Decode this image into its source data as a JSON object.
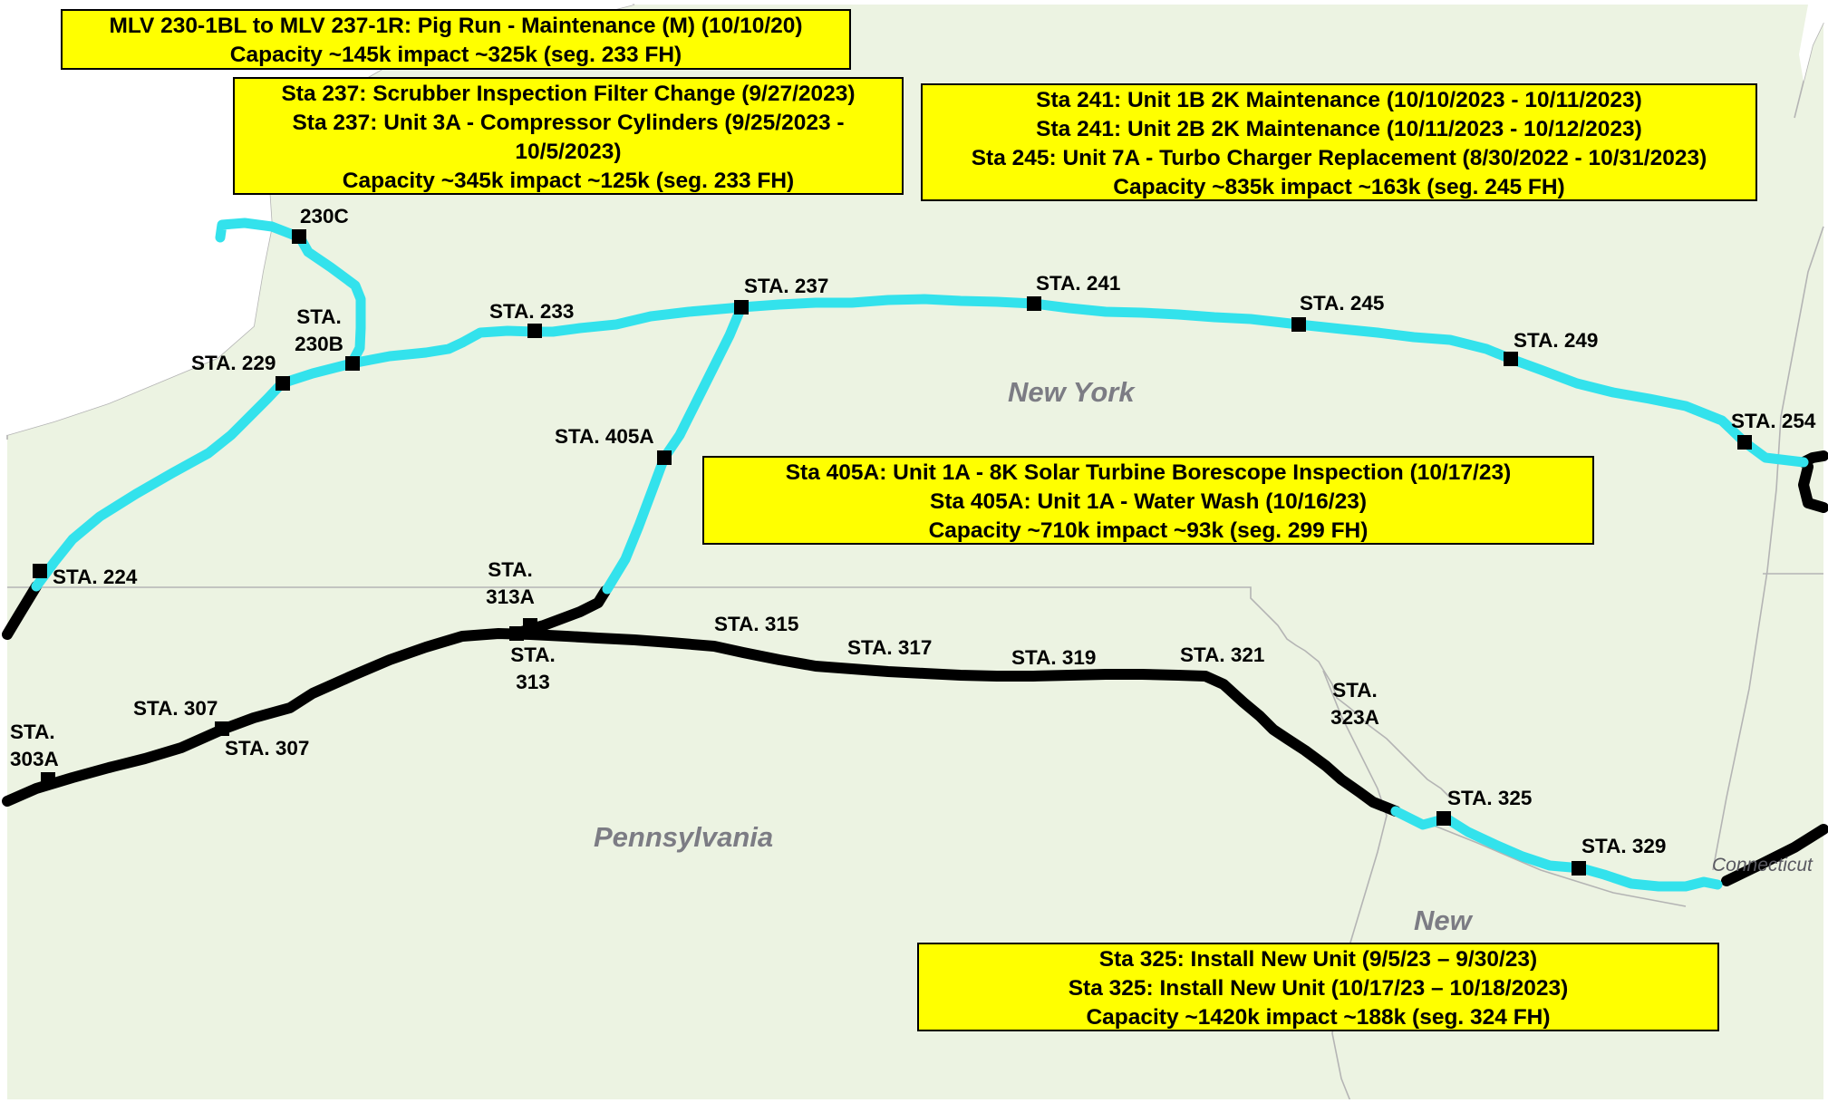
{
  "map": {
    "colors": {
      "land": "#ecf3e2",
      "border": "#b4b4b4",
      "active_segment": "#33e2ec",
      "pipeline": "#000000",
      "station": "#000000",
      "note_fill": "#ffff00",
      "state_label": "#7c7c84"
    },
    "states": [
      "New York",
      "Pennsylvania",
      "New",
      "Connecticut"
    ],
    "stations": [
      {
        "id": "230c",
        "label": "230C"
      },
      {
        "id": "230b",
        "label": "STA. 230B"
      },
      {
        "id": "229",
        "label": "STA. 229"
      },
      {
        "id": "233",
        "label": "STA. 233"
      },
      {
        "id": "237",
        "label": "STA. 237"
      },
      {
        "id": "241",
        "label": "STA. 241"
      },
      {
        "id": "245",
        "label": "STA. 245"
      },
      {
        "id": "249",
        "label": "STA. 249"
      },
      {
        "id": "254",
        "label": "STA. 254"
      },
      {
        "id": "405a",
        "label": "STA. 405A"
      },
      {
        "id": "224",
        "label": "STA. 224"
      },
      {
        "id": "313a",
        "label": "STA. 313A"
      },
      {
        "id": "313",
        "label": "STA. 313"
      },
      {
        "id": "315",
        "label": "STA. 315"
      },
      {
        "id": "317",
        "label": "STA. 317"
      },
      {
        "id": "319",
        "label": "STA. 319"
      },
      {
        "id": "321",
        "label": "STA. 321"
      },
      {
        "id": "323a",
        "label": "STA. 323A"
      },
      {
        "id": "325",
        "label": "STA. 325"
      },
      {
        "id": "329",
        "label": "STA. 329"
      },
      {
        "id": "307-north",
        "label": "STA. 307"
      },
      {
        "id": "307-south",
        "label": "STA. 307"
      },
      {
        "id": "303a",
        "label": "STA. 303A"
      }
    ],
    "notes": [
      {
        "id": "pig-run",
        "lines": [
          "MLV 230-1BL to MLV 237-1R: Pig Run - Maintenance (M) (10/10/20)",
          "Capacity ~145k impact ~325k (seg. 233 FH)"
        ]
      },
      {
        "id": "sta-237",
        "lines": [
          "Sta 237: Scrubber Inspection Filter Change  (9/27/2023)",
          "Sta 237: Unit 3A - Compressor Cylinders  (9/25/2023 - 10/5/2023)",
          "Capacity ~345k impact ~125k (seg. 233 FH)"
        ]
      },
      {
        "id": "sta-241-245",
        "lines": [
          "Sta 241: Unit 1B 2K Maintenance  (10/10/2023 - 10/11/2023)",
          "Sta 241: Unit 2B 2K Maintenance  (10/11/2023 - 10/12/2023)",
          "Sta 245: Unit 7A - Turbo Charger Replacement  (8/30/2022 - 10/31/2023)",
          "Capacity ~835k impact ~163k (seg. 245 FH)"
        ]
      },
      {
        "id": "sta-405a",
        "lines": [
          "Sta 405A: Unit 1A - 8K Solar Turbine Borescope Inspection  (10/17/23)",
          "Sta 405A: Unit 1A - Water Wash  (10/16/23)",
          "Capacity ~710k impact ~93k (seg. 299 FH)"
        ]
      },
      {
        "id": "sta-325",
        "lines": [
          "Sta 325: Install New Unit  (9/5/23 – 9/30/23)",
          "Sta 325: Install New Unit  (10/17/23 – 10/18/2023)",
          "Capacity ~1420k impact ~188k (seg. 324 FH)"
        ]
      }
    ]
  }
}
